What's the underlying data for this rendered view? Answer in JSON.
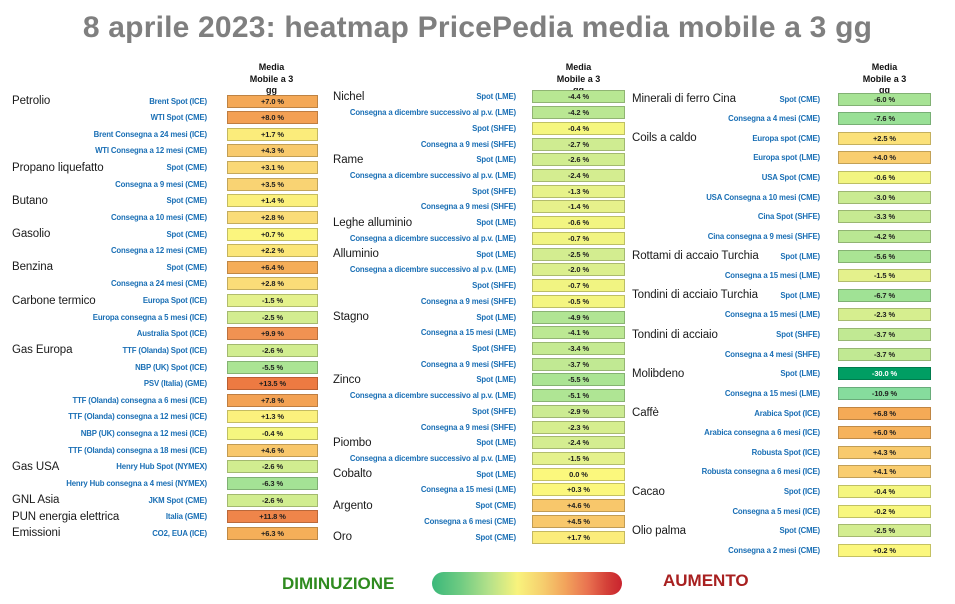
{
  "chart_data": {
    "type": "heatmap",
    "title": "8 aprile 2023: heatmap PricePedia media mobile a 3 gg",
    "value_header": [
      "Media",
      "Mobile a 3",
      "gg"
    ],
    "unit": "%",
    "legend": {
      "decrease_label": "DIMINUZIONE",
      "increase_label": "AUMENTO",
      "decrease_color": "#2f8b1f",
      "increase_color": "#a82020",
      "gradient": [
        [
          0,
          "#3bb87a"
        ],
        [
          15,
          "#6fcb82"
        ],
        [
          30,
          "#b4e18a"
        ],
        [
          45,
          "#f8f37d"
        ],
        [
          58,
          "#f6cf6e"
        ],
        [
          70,
          "#f2a45c"
        ],
        [
          82,
          "#e97250"
        ],
        [
          92,
          "#d44038"
        ],
        [
          100,
          "#c9232e"
        ]
      ]
    },
    "colors": {
      "label_blue": "#1a6fb5",
      "title_gray": "#7f7f7f",
      "scale_anchors": [
        [
          -30,
          "#009e63"
        ],
        [
          -15,
          "#5bcd8c"
        ],
        [
          -11,
          "#85dc9d"
        ],
        [
          -7,
          "#9de195"
        ],
        [
          -5,
          "#b0e594"
        ],
        [
          -3,
          "#caeb92"
        ],
        [
          -1.5,
          "#e4f18c"
        ],
        [
          -0.5,
          "#f4f580"
        ],
        [
          0,
          "#fbf87d"
        ],
        [
          1,
          "#fbf47e"
        ],
        [
          2,
          "#fbe97a"
        ],
        [
          3,
          "#fad977"
        ],
        [
          4.5,
          "#f8c86c"
        ],
        [
          6.5,
          "#f5ac57"
        ],
        [
          8,
          "#f3a054"
        ],
        [
          10,
          "#f19152"
        ],
        [
          12,
          "#ef8449"
        ],
        [
          14,
          "#ec7640"
        ],
        [
          20,
          "#de5032"
        ]
      ],
      "white_text_below": -15
    },
    "columns": [
      {
        "rows": [
          {
            "category": "Petrolio",
            "label": "Brent Spot (ICE)",
            "v": 7.0,
            "d": "+7.0 %"
          },
          {
            "category": "",
            "label": "WTI Spot (CME)",
            "v": 8.0,
            "d": "+8.0 %"
          },
          {
            "category": "",
            "label": "Brent Consegna a 24 mesi (ICE)",
            "v": 1.7,
            "d": "+1.7 %"
          },
          {
            "category": "",
            "label": "WTI Consegna a 12 mesi (CME)",
            "v": 4.3,
            "d": "+4.3 %"
          },
          {
            "category": "Propano liquefatto",
            "label": "Spot (CME)",
            "v": 3.1,
            "d": "+3.1 %"
          },
          {
            "category": "",
            "label": "Consegna a 9 mesi (CME)",
            "v": 3.5,
            "d": "+3.5 %"
          },
          {
            "category": "Butano",
            "label": "Spot (CME)",
            "v": 1.4,
            "d": "+1.4 %"
          },
          {
            "category": "",
            "label": "Consegna a 10 mesi (CME)",
            "v": 2.8,
            "d": "+2.8 %"
          },
          {
            "category": "Gasolio",
            "label": "Spot (CME)",
            "v": 0.7,
            "d": "+0.7 %"
          },
          {
            "category": "",
            "label": "Consegna a 12 mesi (CME)",
            "v": 2.2,
            "d": "+2.2 %"
          },
          {
            "category": "Benzina",
            "label": "Spot (CME)",
            "v": 6.4,
            "d": "+6.4 %"
          },
          {
            "category": "",
            "label": "Consegna a 24 mesi (CME)",
            "v": 2.8,
            "d": "+2.8 %"
          },
          {
            "category": "Carbone termico",
            "label": "Europa Spot (ICE)",
            "v": -1.5,
            "d": "-1.5 %"
          },
          {
            "category": "",
            "label": "Europa consegna a 5 mesi (ICE)",
            "v": -2.5,
            "d": "-2.5 %"
          },
          {
            "category": "",
            "label": "Australia Spot (ICE)",
            "v": 9.9,
            "d": "+9.9 %"
          },
          {
            "category": "Gas Europa",
            "label": "TTF (Olanda) Spot (ICE)",
            "v": -2.6,
            "d": "-2.6 %"
          },
          {
            "category": "",
            "label": "NBP (UK) Spot (ICE)",
            "v": -5.5,
            "d": "-5.5 %"
          },
          {
            "category": "",
            "label": "PSV (Italia) (GME)",
            "v": 13.5,
            "d": "+13.5 %"
          },
          {
            "category": "",
            "label": "TTF (Olanda) consegna a 6 mesi (ICE)",
            "v": 7.8,
            "d": "+7.8 %"
          },
          {
            "category": "",
            "label": "TTF (Olanda) consegna a 12 mesi (ICE)",
            "v": 1.3,
            "d": "+1.3 %"
          },
          {
            "category": "",
            "label": "NBP (UK) consegna a 12 mesi (ICE)",
            "v": -0.4,
            "d": "-0.4 %"
          },
          {
            "category": "",
            "label": "TTF (Olanda) consegna a 18 mesi (ICE)",
            "v": 4.6,
            "d": "+4.6 %"
          },
          {
            "category": "Gas USA",
            "label": "Henry Hub Spot (NYMEX)",
            "v": -2.6,
            "d": "-2.6 %"
          },
          {
            "category": "",
            "label": "Henry Hub consegna a 4 mesi (NYMEX)",
            "v": -6.3,
            "d": "-6.3 %"
          },
          {
            "category": "GNL Asia",
            "label": "JKM Spot (CME)",
            "v": -2.6,
            "d": "-2.6 %"
          },
          {
            "category": "PUN energia elettrica",
            "label": "Italia (GME)",
            "v": 11.8,
            "d": "+11.8 %"
          },
          {
            "category": "Emissioni",
            "label": "CO2, EUA (ICE)",
            "v": 6.3,
            "d": "+6.3 %"
          }
        ]
      },
      {
        "rows": [
          {
            "category": "Nichel",
            "label": "Spot (LME)",
            "v": -4.4,
            "d": "-4.4 %"
          },
          {
            "category": "",
            "label": "Consegna a dicembre successivo al p.v. (LME)",
            "v": -4.2,
            "d": "-4.2 %"
          },
          {
            "category": "",
            "label": "Spot (SHFE)",
            "v": -0.4,
            "d": "-0.4 %"
          },
          {
            "category": "",
            "label": "Consegna a 9 mesi (SHFE)",
            "v": -2.7,
            "d": "-2.7 %"
          },
          {
            "category": "Rame",
            "label": "Spot (LME)",
            "v": -2.6,
            "d": "-2.6 %"
          },
          {
            "category": "",
            "label": "Consegna a dicembre successivo al p.v. (LME)",
            "v": -2.4,
            "d": "-2.4 %"
          },
          {
            "category": "",
            "label": "Spot (SHFE)",
            "v": -1.3,
            "d": "-1.3 %"
          },
          {
            "category": "",
            "label": "Consegna a 9 mesi (SHFE)",
            "v": -1.4,
            "d": "-1.4 %"
          },
          {
            "category": "Leghe alluminio",
            "label": "Spot (LME)",
            "v": -0.6,
            "d": "-0.6 %"
          },
          {
            "category": "",
            "label": "Consegna a dicembre successivo al p.v. (LME)",
            "v": -0.7,
            "d": "-0.7 %"
          },
          {
            "category": "Alluminio",
            "label": "Spot (LME)",
            "v": -2.5,
            "d": "-2.5 %"
          },
          {
            "category": "",
            "label": "Consegna a dicembre successivo al p.v. (LME)",
            "v": -2.0,
            "d": "-2.0 %"
          },
          {
            "category": "",
            "label": "Spot (SHFE)",
            "v": -0.7,
            "d": "-0.7 %"
          },
          {
            "category": "",
            "label": "Consegna a 9 mesi (SHFE)",
            "v": -0.5,
            "d": "-0.5 %"
          },
          {
            "category": "Stagno",
            "label": "Spot (LME)",
            "v": -4.9,
            "d": "-4.9 %"
          },
          {
            "category": "",
            "label": "Consegna a 15 mesi (LME)",
            "v": -4.1,
            "d": "-4.1 %"
          },
          {
            "category": "",
            "label": "Spot (SHFE)",
            "v": -3.4,
            "d": "-3.4 %"
          },
          {
            "category": "",
            "label": "Consegna a 9 mesi (SHFE)",
            "v": -3.7,
            "d": "-3.7 %"
          },
          {
            "category": "Zinco",
            "label": "Spot (LME)",
            "v": -5.5,
            "d": "-5.5 %"
          },
          {
            "category": "",
            "label": "Consegna a dicembre successivo al p.v. (LME)",
            "v": -5.1,
            "d": "-5.1 %"
          },
          {
            "category": "",
            "label": "Spot (SHFE)",
            "v": -2.9,
            "d": "-2.9 %"
          },
          {
            "category": "",
            "label": "Consegna a 9 mesi (SHFE)",
            "v": -2.3,
            "d": "-2.3 %"
          },
          {
            "category": "Piombo",
            "label": "Spot (LME)",
            "v": -2.4,
            "d": "-2.4 %"
          },
          {
            "category": "",
            "label": "Consegna a dicembre successivo al p.v. (LME)",
            "v": -1.5,
            "d": "-1.5 %"
          },
          {
            "category": "Cobalto",
            "label": "Spot (LME)",
            "v": 0.0,
            "d": "0.0 %"
          },
          {
            "category": "",
            "label": "Consegna a 15 mesi (LME)",
            "v": 0.3,
            "d": "+0.3 %"
          },
          {
            "category": "Argento",
            "label": "Spot (CME)",
            "v": 4.6,
            "d": "+4.6 %"
          },
          {
            "category": "",
            "label": "Consegna a 6 mesi (CME)",
            "v": 4.5,
            "d": "+4.5 %"
          },
          {
            "category": "Oro",
            "label": "Spot (CME)",
            "v": 1.7,
            "d": "+1.7 %"
          }
        ]
      },
      {
        "rows": [
          {
            "category": "Minerali di ferro Cina",
            "label": "Spot (CME)",
            "v": -6.0,
            "d": "-6.0 %"
          },
          {
            "category": "",
            "label": "Consegna a 4 mesi (CME)",
            "v": -7.6,
            "d": "-7.6 %"
          },
          {
            "category": "Coils a caldo",
            "label": "Europa spot (CME)",
            "v": 2.5,
            "d": "+2.5 %"
          },
          {
            "category": "",
            "label": "Europa spot (LME)",
            "v": 4.0,
            "d": "+4.0 %"
          },
          {
            "category": "",
            "label": "USA Spot (CME)",
            "v": -0.6,
            "d": "-0.6 %"
          },
          {
            "category": "",
            "label": "USA Consegna a 10 mesi (CME)",
            "v": -3.0,
            "d": "-3.0 %"
          },
          {
            "category": "",
            "label": "Cina Spot (SHFE)",
            "v": -3.3,
            "d": "-3.3 %"
          },
          {
            "category": "",
            "label": "Cina consegna a 9 mesi (SHFE)",
            "v": -4.2,
            "d": "-4.2 %"
          },
          {
            "category": "Rottami di accaio Turchia",
            "label": "Spot (LME)",
            "v": -5.6,
            "d": "-5.6 %"
          },
          {
            "category": "",
            "label": "Consegna a 15 mesi (LME)",
            "v": -1.5,
            "d": "-1.5 %"
          },
          {
            "category": "Tondini di acciaio Turchia",
            "label": "Spot (LME)",
            "v": -6.7,
            "d": "-6.7 %"
          },
          {
            "category": "",
            "label": "Consegna a 15 mesi (LME)",
            "v": -2.3,
            "d": "-2.3 %"
          },
          {
            "category": "Tondini di acciaio",
            "label": "Spot (SHFE)",
            "v": -3.7,
            "d": "-3.7 %"
          },
          {
            "category": "",
            "label": "Consegna a 4 mesi (SHFE)",
            "v": -3.7,
            "d": "-3.7 %"
          },
          {
            "category": "Molibdeno",
            "label": "Spot (LME)",
            "v": -30.0,
            "d": "-30.0 %"
          },
          {
            "category": "",
            "label": "Consegna a 15 mesi (LME)",
            "v": -10.9,
            "d": "-10.9 %"
          },
          {
            "category": "Caffè",
            "label": "Arabica Spot (ICE)",
            "v": 6.8,
            "d": "+6.8 %"
          },
          {
            "category": "",
            "label": "Arabica consegna a 6 mesi (ICE)",
            "v": 6.0,
            "d": "+6.0 %"
          },
          {
            "category": "",
            "label": "Robusta Spot (ICE)",
            "v": 4.3,
            "d": "+4.3 %"
          },
          {
            "category": "",
            "label": "Robusta consegna a 6 mesi (ICE)",
            "v": 4.1,
            "d": "+4.1 %"
          },
          {
            "category": "Cacao",
            "label": "Spot (ICE)",
            "v": -0.4,
            "d": "-0.4 %"
          },
          {
            "category": "",
            "label": "Consegna a 5 mesi (ICE)",
            "v": -0.2,
            "d": "-0.2 %"
          },
          {
            "category": "Olio palma",
            "label": "Spot (CME)",
            "v": -2.5,
            "d": "-2.5 %"
          },
          {
            "category": "",
            "label": "Consegna a 2 mesi (CME)",
            "v": 0.2,
            "d": "+0.2 %"
          }
        ]
      }
    ]
  }
}
